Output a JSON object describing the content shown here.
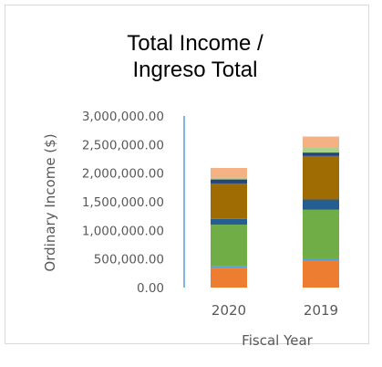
{
  "chart_data": {
    "type": "bar",
    "stacked": true,
    "title": [
      "Total Income /",
      "Ingreso Total"
    ],
    "xlabel": "Fiscal Year",
    "ylabel": "Ordinary Income ($)",
    "categories": [
      "2020",
      "2019"
    ],
    "ylim": [
      0,
      3000000
    ],
    "yticks": [
      0,
      500000,
      1000000,
      1500000,
      2000000,
      2500000,
      3000000
    ],
    "ytick_labels": [
      "0.00",
      "500,000.00",
      "1,000,000.00",
      "1,500,000.00",
      "2,000,000.00",
      "2,500,000.00",
      "3,000,000.00"
    ],
    "legend": "none",
    "series": [
      {
        "values": [
          340000,
          470000
        ],
        "color": "#ed7d31"
      },
      {
        "values": [
          30000,
          40000
        ],
        "color": "#5b9bd5"
      },
      {
        "values": [
          730000,
          850000
        ],
        "color": "#70ad47"
      },
      {
        "values": [
          100000,
          180000
        ],
        "color": "#255e91"
      },
      {
        "values": [
          620000,
          760000
        ],
        "color": "#9e6c03"
      },
      {
        "values": [
          70000,
          60000
        ],
        "color": "#264478"
      },
      {
        "values": [
          30000,
          90000
        ],
        "color": "#a9d18e"
      },
      {
        "values": [
          170000,
          190000
        ],
        "color": "#f4b183"
      }
    ]
  }
}
